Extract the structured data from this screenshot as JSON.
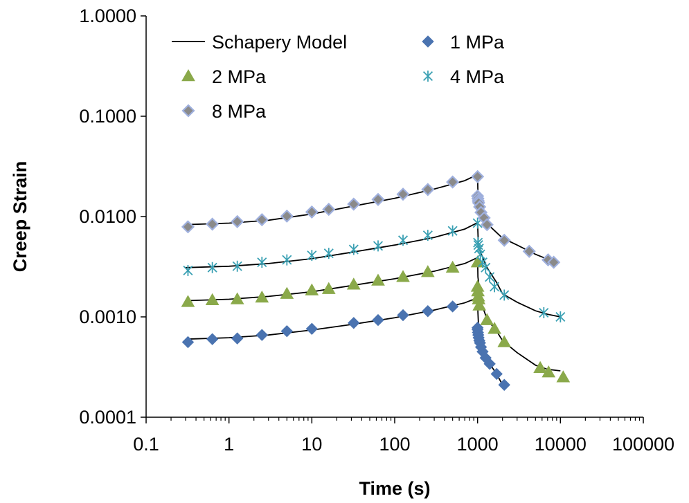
{
  "chart_data": {
    "type": "scatter",
    "title": "",
    "xlabel": "Time (s)",
    "ylabel": "Creep Strain",
    "x_scale": "log",
    "y_scale": "log",
    "xlim": [
      0.1,
      100000
    ],
    "ylim": [
      0.0001,
      1.0
    ],
    "x_tick_labels": [
      "0.1",
      "1",
      "10",
      "100",
      "1000",
      "10000",
      "100000"
    ],
    "y_tick_labels": [
      "0.0001",
      "0.0010",
      "0.0100",
      "0.1000",
      "1.0000"
    ],
    "grid": false,
    "legend_position": "top-left",
    "series": [
      {
        "name": "Schapery Model",
        "kind": "line",
        "color": "#000000",
        "segments": [
          [
            [
              0.3,
              0.0006
            ],
            [
              1,
              0.00062
            ],
            [
              3,
              0.00066
            ],
            [
              10,
              0.00074
            ],
            [
              30,
              0.00084
            ],
            [
              100,
              0.00098
            ],
            [
              300,
              0.00117
            ],
            [
              700,
              0.00138
            ],
            [
              1000,
              0.00155
            ],
            [
              1010,
              0.0011
            ],
            [
              1040,
              0.00065
            ],
            [
              1150,
              0.00048
            ],
            [
              1400,
              0.00034
            ],
            [
              1700,
              0.00027
            ],
            [
              2000,
              0.00021
            ]
          ],
          [
            [
              0.3,
              0.00145
            ],
            [
              1,
              0.0015
            ],
            [
              3,
              0.0016
            ],
            [
              10,
              0.00178
            ],
            [
              30,
              0.00205
            ],
            [
              100,
              0.0024
            ],
            [
              300,
              0.00285
            ],
            [
              700,
              0.0034
            ],
            [
              1000,
              0.0039
            ],
            [
              1010,
              0.0025
            ],
            [
              1100,
              0.0014
            ],
            [
              1300,
              0.00095
            ],
            [
              1700,
              0.00072
            ],
            [
              2000,
              0.00058
            ],
            [
              3000,
              0.00044
            ],
            [
              5000,
              0.00033
            ],
            [
              7000,
              0.0003
            ],
            [
              10000,
              0.00029
            ]
          ],
          [
            [
              0.3,
              0.0031
            ],
            [
              1,
              0.0032
            ],
            [
              3,
              0.0034
            ],
            [
              10,
              0.0038
            ],
            [
              30,
              0.0044
            ],
            [
              100,
              0.0052
            ],
            [
              300,
              0.0062
            ],
            [
              700,
              0.0075
            ],
            [
              1000,
              0.0087
            ],
            [
              1020,
              0.0055
            ],
            [
              1100,
              0.0043
            ],
            [
              1300,
              0.0031
            ],
            [
              1700,
              0.0022
            ],
            [
              2000,
              0.0017
            ],
            [
              3000,
              0.0014
            ],
            [
              5000,
              0.00115
            ],
            [
              7000,
              0.00106
            ],
            [
              10000,
              0.001
            ]
          ],
          [
            [
              0.3,
              0.0083
            ],
            [
              1,
              0.0086
            ],
            [
              3,
              0.0092
            ],
            [
              10,
              0.0106
            ],
            [
              30,
              0.0126
            ],
            [
              100,
              0.0152
            ],
            [
              300,
              0.0188
            ],
            [
              700,
              0.0228
            ],
            [
              1000,
              0.0262
            ],
            [
              1010,
              0.017
            ],
            [
              1100,
              0.012
            ],
            [
              1300,
              0.0085
            ],
            [
              2000,
              0.0061
            ],
            [
              3000,
              0.0052
            ],
            [
              5000,
              0.0042
            ],
            [
              8000,
              0.0036
            ],
            [
              9000,
              0.0035
            ]
          ]
        ]
      },
      {
        "name": "1 MPa",
        "marker": "diamond",
        "color": "#4a73b0",
        "x": [
          0.32,
          0.63,
          1.26,
          2.5,
          5,
          10,
          32,
          63,
          126,
          251,
          500,
          1000,
          1000,
          1010,
          1020,
          1030,
          1050,
          1070,
          1100,
          1150,
          1250,
          1400,
          1700,
          2100
        ],
        "y": [
          0.00056,
          0.0006,
          0.00061,
          0.00066,
          0.00072,
          0.00076,
          0.00087,
          0.00093,
          0.00104,
          0.00114,
          0.00127,
          0.00078,
          0.00075,
          0.0007,
          0.00066,
          0.00062,
          0.00058,
          0.00055,
          0.0005,
          0.00045,
          0.00039,
          0.00034,
          0.00027,
          0.00021
        ]
      },
      {
        "name": "2 MPa",
        "marker": "triangle",
        "color": "#8aa94a",
        "x": [
          0.32,
          0.63,
          1.26,
          2.5,
          5,
          10,
          16,
          32,
          63,
          126,
          251,
          500,
          1000,
          1000,
          1010,
          1020,
          1030,
          1050,
          1300,
          1600,
          2100,
          5700,
          7200,
          10800
        ],
        "y": [
          0.00141,
          0.00147,
          0.0015,
          0.00156,
          0.0017,
          0.00184,
          0.0019,
          0.0021,
          0.0023,
          0.0025,
          0.0028,
          0.0031,
          0.0035,
          0.002,
          0.0018,
          0.0016,
          0.0015,
          0.0013,
          0.00093,
          0.00076,
          0.00056,
          0.00031,
          0.00028,
          0.00025
        ]
      },
      {
        "name": "4 MPa",
        "marker": "star",
        "color": "#3aa0b3",
        "x": [
          0.32,
          0.63,
          1.26,
          2.5,
          5,
          10,
          16,
          32,
          63,
          126,
          251,
          500,
          1000,
          1010,
          1020,
          1040,
          1080,
          1150,
          1250,
          1400,
          1600,
          2100,
          6300,
          10000
        ],
        "y": [
          0.0029,
          0.0031,
          0.0032,
          0.0035,
          0.0037,
          0.0041,
          0.0043,
          0.0047,
          0.0051,
          0.0058,
          0.0065,
          0.0072,
          0.0086,
          0.0055,
          0.0052,
          0.0048,
          0.0042,
          0.0035,
          0.0031,
          0.0025,
          0.002,
          0.00165,
          0.0011,
          0.001
        ]
      },
      {
        "name": "8 MPa",
        "marker": "diamond",
        "color": "#8a8a8a",
        "fill": "#8a8a8a",
        "stroke": "#9fb0de",
        "x": [
          0.32,
          0.63,
          1.26,
          2.5,
          5,
          10,
          16,
          32,
          63,
          126,
          251,
          500,
          1000,
          1000,
          1010,
          1020,
          1030,
          1060,
          1100,
          1200,
          1300,
          2100,
          4200,
          7100,
          8300
        ],
        "y": [
          0.0079,
          0.0084,
          0.0089,
          0.0093,
          0.0101,
          0.0111,
          0.0118,
          0.0133,
          0.0148,
          0.0167,
          0.0186,
          0.0221,
          0.025,
          0.016,
          0.0151,
          0.0143,
          0.0137,
          0.0125,
          0.011,
          0.0097,
          0.0083,
          0.0058,
          0.0045,
          0.0037,
          0.0035
        ]
      }
    ]
  }
}
